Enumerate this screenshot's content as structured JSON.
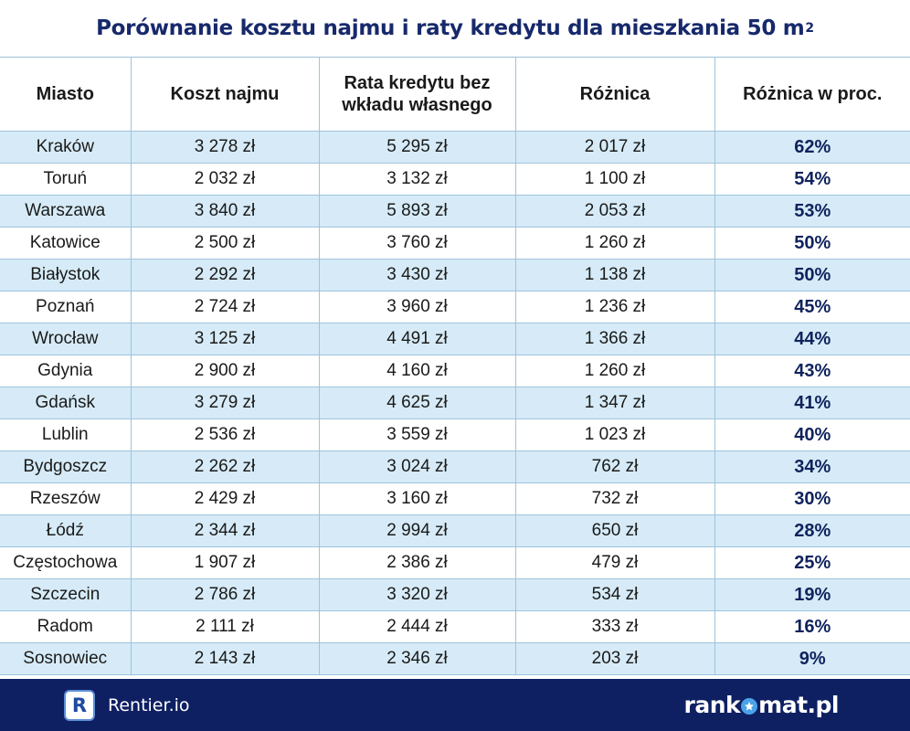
{
  "title": {
    "text": "Porównanie kosztu najmu i raty kredytu dla mieszkania 50 m",
    "superscript": "2"
  },
  "table": {
    "headers": [
      "Miasto",
      "Koszt najmu",
      "Rata kredytu bez wkładu własnego",
      "Różnica",
      "Różnica w proc."
    ],
    "rows": [
      [
        "Kraków",
        "3 278 zł",
        "5 295 zł",
        "2 017 zł",
        "62%"
      ],
      [
        "Toruń",
        "2 032 zł",
        "3 132 zł",
        "1 100 zł",
        "54%"
      ],
      [
        "Warszawa",
        "3 840 zł",
        "5 893 zł",
        "2 053 zł",
        "53%"
      ],
      [
        "Katowice",
        "2 500 zł",
        "3 760 zł",
        "1 260 zł",
        "50%"
      ],
      [
        "Białystok",
        "2 292 zł",
        "3 430 zł",
        "1 138 zł",
        "50%"
      ],
      [
        "Poznań",
        "2 724 zł",
        "3 960 zł",
        "1 236 zł",
        "45%"
      ],
      [
        "Wrocław",
        "3 125 zł",
        "4 491 zł",
        "1 366 zł",
        "44%"
      ],
      [
        "Gdynia",
        "2 900 zł",
        "4 160 zł",
        "1 260 zł",
        "43%"
      ],
      [
        "Gdańsk",
        "3 279 zł",
        "4 625 zł",
        "1 347 zł",
        "41%"
      ],
      [
        "Lublin",
        "2 536 zł",
        "3 559 zł",
        "1 023 zł",
        "40%"
      ],
      [
        "Bydgoszcz",
        "2 262 zł",
        "3 024 zł",
        "762 zł",
        "34%"
      ],
      [
        "Rzeszów",
        "2 429 zł",
        "3 160 zł",
        "732 zł",
        "30%"
      ],
      [
        "Łódź",
        "2 344 zł",
        "2 994 zł",
        "650 zł",
        "28%"
      ],
      [
        "Częstochowa",
        "1 907 zł",
        "2 386 zł",
        "479 zł",
        "25%"
      ],
      [
        "Szczecin",
        "2 786 zł",
        "3 320 zł",
        "534 zł",
        "19%"
      ],
      [
        "Radom",
        "2 111 zł",
        "2 444 zł",
        "333 zł",
        "16%"
      ],
      [
        "Sosnowiec",
        "2 143 zł",
        "2 346 zł",
        "203 zł",
        "9%"
      ]
    ]
  },
  "footer": {
    "left_badge": "R",
    "left_name": "Rentier.io",
    "right_brand_pre": "rank",
    "right_brand_post": "mat.pl"
  },
  "colors": {
    "title": "#17296b",
    "row_stripe": "#d6ebf7",
    "grid_line": "#9fc3dc",
    "footer_bg": "#0f2062",
    "logo_accent": "#4aa3e8"
  },
  "icons": {
    "logo_star": "star-icon"
  }
}
